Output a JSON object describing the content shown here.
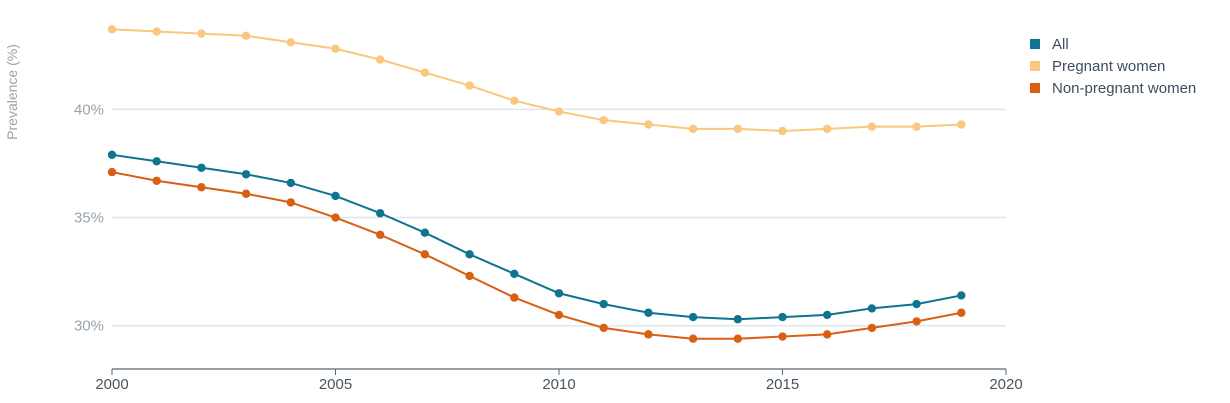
{
  "chart_data": {
    "type": "line",
    "title": "",
    "xlabel": "",
    "ylabel": "Prevalence (%)",
    "xlim": [
      2000,
      2020
    ],
    "ylim": [
      28,
      44.5
    ],
    "x_ticks": [
      {
        "value": 2000,
        "label": "2000"
      },
      {
        "value": 2005,
        "label": "2005"
      },
      {
        "value": 2010,
        "label": "2010"
      },
      {
        "value": 2015,
        "label": "2015"
      },
      {
        "value": 2020,
        "label": "2020"
      }
    ],
    "y_ticks": [
      {
        "value": 30,
        "label": "30%"
      },
      {
        "value": 35,
        "label": "35%"
      },
      {
        "value": 40,
        "label": "40%"
      }
    ],
    "grid": "horizontal",
    "legend_position": "top-right",
    "x": [
      2000,
      2001,
      2002,
      2003,
      2004,
      2005,
      2006,
      2007,
      2008,
      2009,
      2010,
      2011,
      2012,
      2013,
      2014,
      2015,
      2016,
      2017,
      2018,
      2019
    ],
    "series": [
      {
        "name": "All",
        "color": "#0e7490",
        "values": [
          37.9,
          37.6,
          37.3,
          37.0,
          36.6,
          36.0,
          35.2,
          34.3,
          33.3,
          32.4,
          31.5,
          31.0,
          30.6,
          30.4,
          30.3,
          30.4,
          30.5,
          30.8,
          31.0,
          31.4
        ]
      },
      {
        "name": "Pregnant women",
        "color": "#f9c77d",
        "values": [
          43.7,
          43.6,
          43.5,
          43.4,
          43.1,
          42.8,
          42.3,
          41.7,
          41.1,
          40.4,
          39.9,
          39.5,
          39.3,
          39.1,
          39.1,
          39.0,
          39.1,
          39.2,
          39.2,
          39.3
        ]
      },
      {
        "name": "Non-pregnant women",
        "color": "#d95f13",
        "values": [
          37.1,
          36.7,
          36.4,
          36.1,
          35.7,
          35.0,
          34.2,
          33.3,
          32.3,
          31.3,
          30.5,
          29.9,
          29.6,
          29.4,
          29.4,
          29.5,
          29.6,
          29.9,
          30.2,
          30.6
        ]
      }
    ]
  },
  "colors": {
    "grid": "#dde8e8",
    "axis": "#5c6670",
    "tick_text": "#9aa3ad",
    "x_tick_text": "#4a5560"
  }
}
